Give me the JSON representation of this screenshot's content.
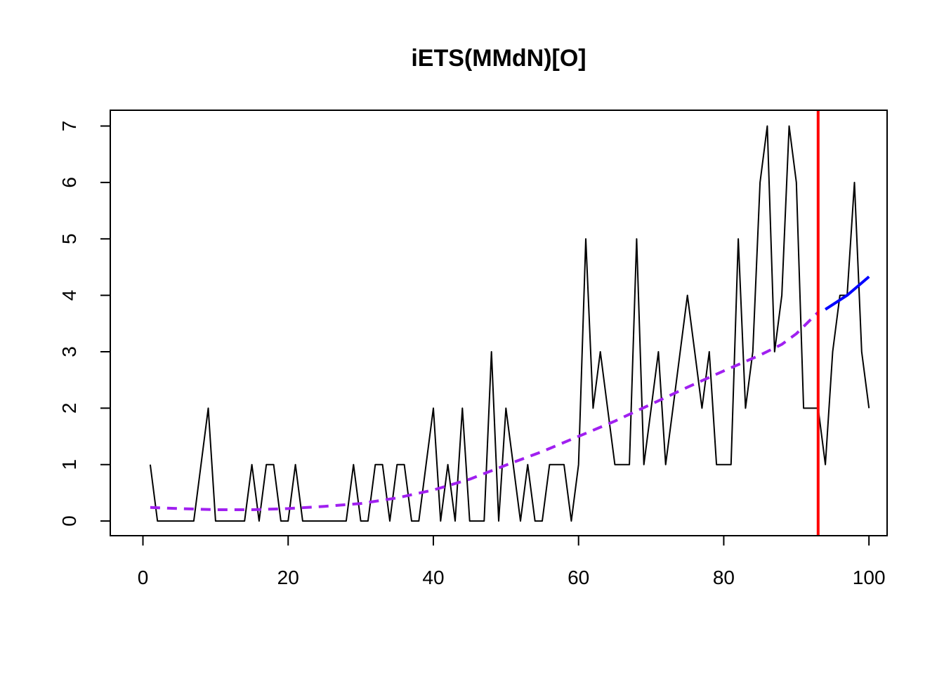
{
  "chart_data": {
    "type": "line",
    "title": "iETS(MMdN)[O]",
    "xlabel": "",
    "ylabel": "",
    "xlim": [
      -4.5,
      102.5
    ],
    "ylim": [
      -0.26,
      7.28
    ],
    "x_ticks": [
      0,
      20,
      40,
      60,
      80,
      100
    ],
    "y_ticks": [
      0,
      1,
      2,
      3,
      4,
      5,
      6,
      7
    ],
    "grid": false,
    "legend": "none",
    "series": [
      {
        "role": "actuals",
        "color": "#000000",
        "style": "solid",
        "x_start": 1,
        "values": [
          1,
          0,
          0,
          0,
          0,
          0,
          0,
          1,
          2,
          0,
          0,
          0,
          0,
          0,
          1,
          0,
          1,
          1,
          0,
          0,
          1,
          0,
          0,
          0,
          0,
          0,
          0,
          0,
          1,
          0,
          0,
          1,
          1,
          0,
          1,
          1,
          0,
          0,
          1,
          2,
          0,
          1,
          0,
          2,
          0,
          0,
          0,
          3,
          0,
          2,
          1,
          0,
          1,
          0,
          0,
          1,
          1,
          1,
          0,
          1,
          5,
          2,
          3,
          2,
          1,
          1,
          1,
          5,
          1,
          2,
          3,
          1,
          2,
          3,
          4,
          3,
          2,
          3,
          1,
          1,
          1,
          5,
          2,
          3,
          6,
          7,
          3,
          4,
          7,
          6,
          2,
          2,
          2,
          1,
          3,
          4,
          4,
          6,
          3,
          2
        ]
      },
      {
        "role": "fitted",
        "color": "#a020f0",
        "style": "dashed",
        "points": [
          [
            1,
            0.24
          ],
          [
            5,
            0.22
          ],
          [
            10,
            0.2
          ],
          [
            15,
            0.2
          ],
          [
            20,
            0.22
          ],
          [
            25,
            0.26
          ],
          [
            30,
            0.31
          ],
          [
            35,
            0.41
          ],
          [
            40,
            0.55
          ],
          [
            45,
            0.74
          ],
          [
            50,
            0.99
          ],
          [
            55,
            1.23
          ],
          [
            60,
            1.5
          ],
          [
            65,
            1.77
          ],
          [
            70,
            2.07
          ],
          [
            75,
            2.37
          ],
          [
            80,
            2.66
          ],
          [
            85,
            2.94
          ],
          [
            88,
            3.13
          ],
          [
            90,
            3.32
          ],
          [
            93,
            3.7
          ]
        ]
      },
      {
        "role": "forecast",
        "color": "#0000ff",
        "style": "solid",
        "points": [
          [
            94,
            3.75
          ],
          [
            97,
            4.0
          ],
          [
            100,
            4.33
          ]
        ]
      }
    ],
    "vline": {
      "x": 93,
      "color": "#ff0000"
    }
  }
}
